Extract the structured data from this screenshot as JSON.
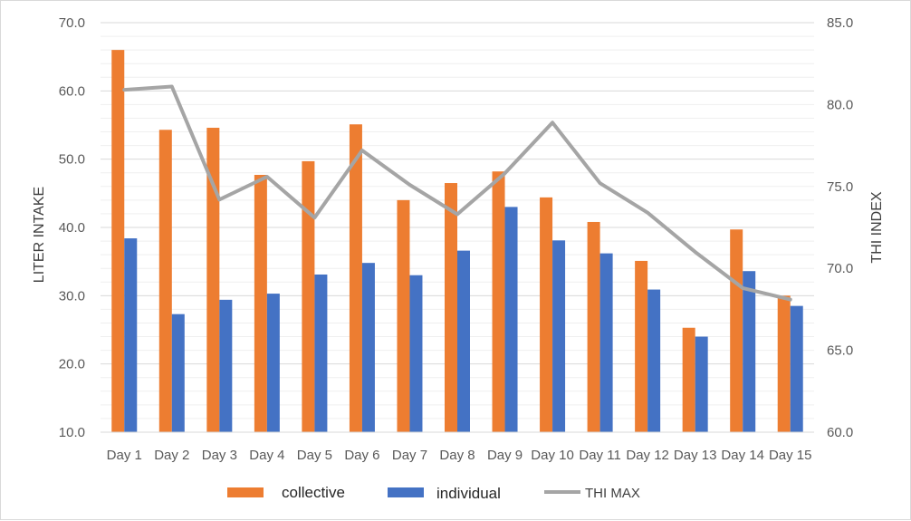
{
  "chart_data": {
    "type": "bar",
    "categories": [
      "Day 1",
      "Day 2",
      "Day 3",
      "Day 4",
      "Day 5",
      "Day 6",
      "Day 7",
      "Day 8",
      "Day 9",
      "Day 10",
      "Day 11",
      "Day 12",
      "Day 13",
      "Day 14",
      "Day 15"
    ],
    "series": [
      {
        "name": "collective",
        "type": "bar",
        "axis": "left",
        "color": "#ed7d31",
        "values": [
          66.0,
          54.3,
          54.6,
          47.7,
          49.7,
          55.1,
          44.0,
          46.5,
          48.2,
          44.4,
          40.8,
          35.1,
          25.3,
          39.7,
          30.0
        ]
      },
      {
        "name": "individual",
        "type": "bar",
        "axis": "left",
        "color": "#4472c4",
        "values": [
          38.4,
          27.3,
          29.4,
          30.3,
          33.1,
          34.8,
          33.0,
          36.6,
          43.0,
          38.1,
          36.2,
          30.9,
          24.0,
          33.6,
          28.5
        ]
      },
      {
        "name": "THI MAX",
        "type": "line",
        "axis": "right",
        "color": "#a5a5a5",
        "values": [
          80.9,
          81.1,
          74.2,
          75.6,
          73.1,
          77.2,
          75.1,
          73.3,
          75.8,
          78.9,
          75.2,
          73.4,
          71.0,
          68.8,
          68.1
        ]
      }
    ],
    "ylabel": "LITER INTAKE",
    "ylim": [
      10,
      70
    ],
    "yticks": [
      "10.0",
      "20.0",
      "30.0",
      "40.0",
      "50.0",
      "60.0",
      "70.0"
    ],
    "y2label": "THI INDEX",
    "y2lim": [
      60,
      85
    ],
    "y2ticks": [
      "60.0",
      "65.0",
      "70.0",
      "75.0",
      "80.0",
      "85.0"
    ],
    "grid": true,
    "legend": "bottom"
  }
}
